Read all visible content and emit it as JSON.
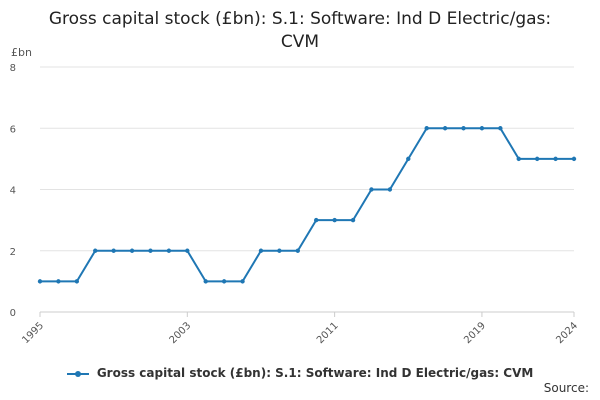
{
  "chart_data": {
    "type": "line",
    "title_lines": [
      "Gross capital stock (£bn): S.1: Software: Ind D Electric/gas:",
      "CVM"
    ],
    "ylabel": "£bn",
    "xlabel": "",
    "ylim": [
      0,
      8
    ],
    "yticks": [
      "0",
      "2",
      "4",
      "6",
      "8"
    ],
    "xlim": [
      1995,
      2024
    ],
    "xticks": [
      "1995",
      "2003",
      "2011",
      "2019",
      "2024"
    ],
    "grid": true,
    "legend_position": "bottom",
    "series": [
      {
        "name": "Gross capital stock (£bn): S.1: Software: Ind D Electric/gas: CVM",
        "color": "#1f77b4",
        "x": [
          1995,
          1996,
          1997,
          1998,
          1999,
          2000,
          2001,
          2002,
          2003,
          2004,
          2005,
          2006,
          2007,
          2008,
          2009,
          2010,
          2011,
          2012,
          2013,
          2014,
          2015,
          2016,
          2017,
          2018,
          2019,
          2020,
          2021,
          2022,
          2023,
          2024
        ],
        "values": [
          1,
          1,
          1,
          2,
          2,
          2,
          2,
          2,
          2,
          1,
          1,
          1,
          2,
          2,
          2,
          3,
          3,
          3,
          4,
          4,
          5,
          6,
          6,
          6,
          6,
          6,
          5,
          5,
          5,
          5
        ]
      }
    ]
  },
  "source_label": "Source:"
}
